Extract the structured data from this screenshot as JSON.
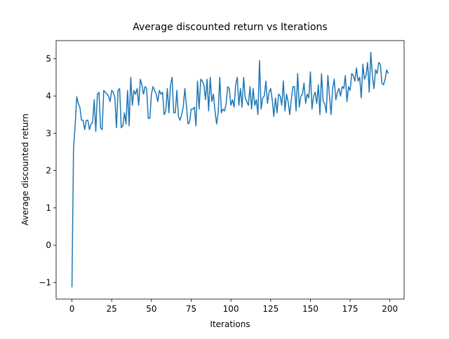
{
  "chart_data": {
    "type": "line",
    "title": "Average discounted return vs Iterations",
    "x_label": "Iterations",
    "y_label": "Average discounted return",
    "x": [
      0,
      1,
      2,
      3,
      4,
      5,
      6,
      7,
      8,
      9,
      10,
      11,
      12,
      13,
      14,
      15,
      16,
      17,
      18,
      19,
      20,
      21,
      22,
      23,
      24,
      25,
      26,
      27,
      28,
      29,
      30,
      31,
      32,
      33,
      34,
      35,
      36,
      37,
      38,
      39,
      40,
      41,
      42,
      43,
      44,
      45,
      46,
      47,
      48,
      49,
      50,
      51,
      52,
      53,
      54,
      55,
      56,
      57,
      58,
      59,
      60,
      61,
      62,
      63,
      64,
      65,
      66,
      67,
      68,
      69,
      70,
      71,
      72,
      73,
      74,
      75,
      76,
      77,
      78,
      79,
      80,
      81,
      82,
      83,
      84,
      85,
      86,
      87,
      88,
      89,
      90,
      91,
      92,
      93,
      94,
      95,
      96,
      97,
      98,
      99,
      100,
      101,
      102,
      103,
      104,
      105,
      106,
      107,
      108,
      109,
      110,
      111,
      112,
      113,
      114,
      115,
      116,
      117,
      118,
      119,
      120,
      121,
      122,
      123,
      124,
      125,
      126,
      127,
      128,
      129,
      130,
      131,
      132,
      133,
      134,
      135,
      136,
      137,
      138,
      139,
      140,
      141,
      142,
      143,
      144,
      145,
      146,
      147,
      148,
      149,
      150,
      151,
      152,
      153,
      154,
      155,
      156,
      157,
      158,
      159,
      160,
      161,
      162,
      163,
      164,
      165,
      166,
      167,
      168,
      169,
      170,
      171,
      172,
      173,
      174,
      175,
      176,
      177,
      178,
      179,
      180,
      181,
      182,
      183,
      184,
      185,
      186,
      187,
      188,
      189,
      190,
      191,
      192,
      193,
      194,
      195,
      196,
      197,
      198,
      199
    ],
    "series": [
      {
        "name": "Average discounted return",
        "color": "#1f77b4",
        "values": [
          -1.13,
          2.6,
          3.2,
          3.98,
          3.8,
          3.7,
          3.35,
          3.35,
          3.1,
          3.35,
          3.35,
          3.1,
          3.25,
          3.3,
          3.9,
          3.05,
          4.05,
          4.1,
          3.15,
          3.1,
          4.15,
          4.1,
          4.05,
          4.0,
          3.85,
          4.15,
          4.1,
          3.95,
          3.15,
          4.15,
          4.2,
          3.15,
          3.2,
          3.55,
          3.25,
          4.15,
          3.2,
          4.5,
          3.75,
          4.15,
          4.05,
          4.2,
          3.75,
          4.45,
          4.3,
          4.05,
          4.25,
          4.2,
          3.4,
          3.4,
          4.05,
          4.25,
          4.15,
          4.05,
          3.85,
          4.15,
          4.05,
          4.1,
          3.5,
          3.6,
          4.2,
          3.55,
          4.3,
          4.5,
          3.55,
          3.55,
          4.15,
          3.45,
          3.35,
          3.5,
          3.7,
          4.2,
          3.75,
          3.25,
          3.3,
          3.65,
          3.65,
          3.7,
          3.2,
          4.4,
          3.65,
          4.45,
          4.4,
          4.3,
          3.9,
          4.45,
          3.6,
          4.5,
          3.85,
          4.05,
          3.6,
          3.25,
          3.55,
          4.5,
          3.55,
          3.65,
          3.6,
          3.8,
          4.25,
          4.2,
          3.75,
          3.9,
          3.7,
          4.3,
          4.5,
          3.75,
          4.2,
          3.7,
          4.5,
          3.95,
          3.85,
          3.75,
          4.25,
          3.65,
          4.2,
          3.75,
          3.9,
          3.5,
          4.95,
          3.65,
          3.95,
          4.0,
          4.4,
          3.8,
          4.1,
          4.2,
          3.9,
          3.45,
          3.95,
          3.55,
          4.05,
          4.0,
          3.75,
          4.4,
          3.6,
          4.05,
          3.85,
          3.5,
          3.9,
          4.25,
          4.25,
          3.6,
          4.6,
          3.7,
          4.0,
          4.05,
          4.35,
          3.8,
          4.05,
          3.95,
          4.65,
          3.65,
          4.0,
          4.1,
          3.8,
          4.3,
          3.5,
          4.6,
          3.85,
          3.8,
          3.55,
          4.55,
          4.0,
          3.5,
          4.2,
          4.45,
          3.9,
          4.1,
          4.2,
          4.0,
          4.25,
          4.2,
          4.55,
          3.85,
          4.25,
          4.15,
          4.6,
          4.55,
          4.4,
          4.75,
          4.4,
          4.5,
          3.95,
          4.85,
          4.45,
          4.55,
          4.9,
          4.1,
          5.17,
          4.55,
          4.2,
          4.7,
          4.6,
          4.9,
          4.85,
          4.35,
          4.3,
          4.45,
          4.7,
          4.6
        ]
      }
    ],
    "xlim": [
      -9.95,
      208.95
    ],
    "ylim": [
      -1.445,
      5.485
    ],
    "xticks": [
      0,
      25,
      50,
      75,
      100,
      125,
      150,
      175,
      200
    ],
    "yticks": [
      {
        "value": -1,
        "label": "−1"
      },
      0,
      1,
      2,
      3,
      4,
      5
    ]
  }
}
